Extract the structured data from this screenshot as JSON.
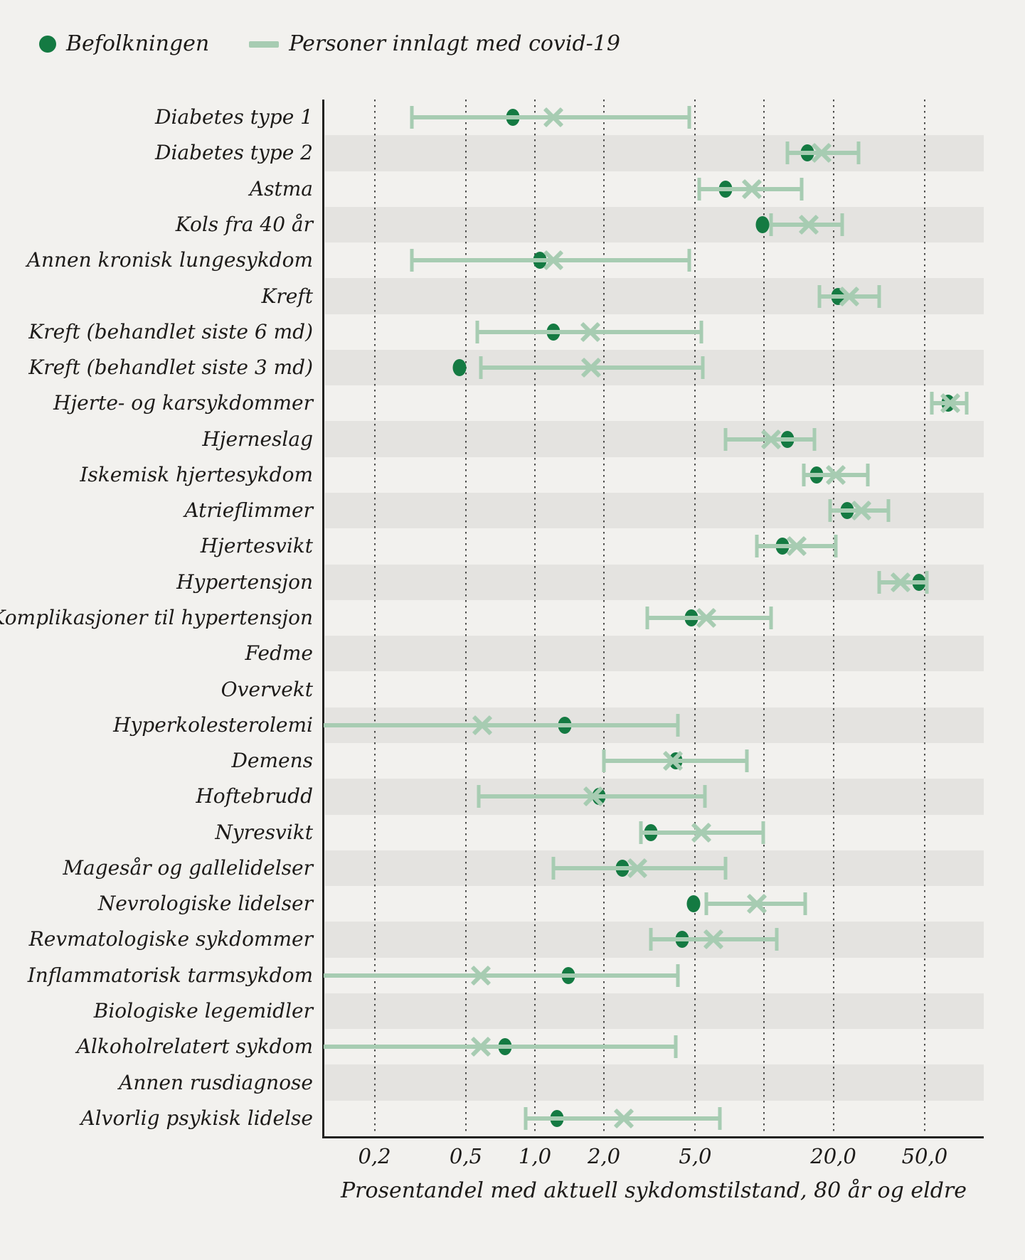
{
  "legend": {
    "population_label": "Befolkningen",
    "covid_label": "Personer innlagt med covid-19"
  },
  "axis": {
    "scale": "log",
    "min": 0.12,
    "max": 90.5,
    "gridlines": [
      0.2,
      0.5,
      1,
      2,
      5,
      10,
      20,
      50
    ],
    "ticks": [
      {
        "label": "0,2",
        "value": 0.2
      },
      {
        "label": "0,5",
        "value": 0.5
      },
      {
        "label": "1,0",
        "value": 1
      },
      {
        "label": "2,0",
        "value": 2
      },
      {
        "label": "5,0",
        "value": 5
      },
      {
        "label": "20,0",
        "value": 20
      },
      {
        "label": "50,0",
        "value": 50
      }
    ],
    "title": "Prosentandel med aktuell sykdomstilstand, 80 år og eldre"
  },
  "colors": {
    "population": "#147a42",
    "covid": "#a7ccb2",
    "band": "#e4e3e0",
    "background": "#f2f1ee",
    "axis_line": "#222220",
    "grid_dot": "#4b4b49",
    "text": "#1d1b19"
  },
  "chart_data": {
    "type": "scatter",
    "subtype": "forest-dot-interval",
    "legend_position": "top-left",
    "grid": "vertical-dotted",
    "series_names": [
      "Befolkningen",
      "Personer innlagt med covid-19"
    ],
    "rows": [
      {
        "label": "Diabetes type 1",
        "population": 0.8,
        "covid": 1.2,
        "ci_low": 0.29,
        "ci_high": 4.7,
        "ci_low_capped": true
      },
      {
        "label": "Diabetes type 2",
        "population": 15.4,
        "covid": 17.8,
        "ci_low": 12.6,
        "ci_high": 25.7,
        "ci_low_capped": true
      },
      {
        "label": "Astma",
        "population": 6.8,
        "covid": 8.8,
        "ci_low": 5.2,
        "ci_high": 14.5,
        "ci_low_capped": true
      },
      {
        "label": "Kols fra 40 år",
        "population": 9.8,
        "covid": 15.6,
        "ci_low": 10.7,
        "ci_high": 21.9,
        "ci_low_capped": true
      },
      {
        "label": "Annen kronisk lungesykdom",
        "population": 1.05,
        "covid": 1.2,
        "ci_low": 0.29,
        "ci_high": 4.7,
        "ci_low_capped": true
      },
      {
        "label": "Kreft",
        "population": 20.9,
        "covid": 23.5,
        "ci_low": 17.4,
        "ci_high": 31.7,
        "ci_low_capped": true
      },
      {
        "label": "Kreft (behandlet siste 6 md)",
        "population": 1.2,
        "covid": 1.75,
        "ci_low": 0.56,
        "ci_high": 5.3,
        "ci_low_capped": true
      },
      {
        "label": "Kreft (behandlet siste 3 md)",
        "population": 0.47,
        "covid": 1.76,
        "ci_low": 0.58,
        "ci_high": 5.4,
        "ci_low_capped": true
      },
      {
        "label": "Hjerte- og karsykdommer",
        "population": 63.5,
        "covid": 64.6,
        "ci_low": 53.7,
        "ci_high": 76.4,
        "ci_low_capped": true
      },
      {
        "label": "Hjerneslag",
        "population": 12.6,
        "covid": 10.7,
        "ci_low": 6.8,
        "ci_high": 16.5,
        "ci_low_capped": true
      },
      {
        "label": "Iskemisk hjertesykdom",
        "population": 16.9,
        "covid": 20.5,
        "ci_low": 14.9,
        "ci_high": 28.3,
        "ci_low_capped": true
      },
      {
        "label": "Atrieflimmer",
        "population": 22.9,
        "covid": 26.5,
        "ci_low": 19.3,
        "ci_high": 34.7,
        "ci_low_capped": true
      },
      {
        "label": "Hjertesvikt",
        "population": 12.0,
        "covid": 13.8,
        "ci_low": 9.3,
        "ci_high": 20.5,
        "ci_low_capped": true
      },
      {
        "label": "Hypertensjon",
        "population": 47.2,
        "covid": 39.2,
        "ci_low": 31.7,
        "ci_high": 51.0,
        "ci_low_capped": true
      },
      {
        "label": "Komplikasjoner til hypertensjon",
        "population": 4.8,
        "covid": 5.6,
        "ci_low": 3.1,
        "ci_high": 10.7,
        "ci_low_capped": true
      },
      {
        "label": "Fedme",
        "population": null,
        "covid": null,
        "ci_low": null,
        "ci_high": null,
        "ci_low_capped": true
      },
      {
        "label": "Overvekt",
        "population": null,
        "covid": null,
        "ci_low": null,
        "ci_high": null,
        "ci_low_capped": true
      },
      {
        "label": "Hyperkolesterolemi",
        "population": 1.35,
        "covid": 0.59,
        "ci_low": 0.12,
        "ci_high": 4.2,
        "ci_low_capped": false
      },
      {
        "label": "Demens",
        "population": 4.1,
        "covid": 4.0,
        "ci_low": 2.0,
        "ci_high": 8.4,
        "ci_low_capped": true
      },
      {
        "label": "Hoftebrudd",
        "population": 1.9,
        "covid": 1.8,
        "ci_low": 0.57,
        "ci_high": 5.5,
        "ci_low_capped": true
      },
      {
        "label": "Nyresvikt",
        "population": 3.2,
        "covid": 5.3,
        "ci_low": 2.9,
        "ci_high": 9.9,
        "ci_low_capped": true
      },
      {
        "label": "Magesår og gallelidelser",
        "population": 2.4,
        "covid": 2.8,
        "ci_low": 1.2,
        "ci_high": 6.8,
        "ci_low_capped": true
      },
      {
        "label": "Nevrologiske lidelser",
        "population": 4.9,
        "covid": 9.3,
        "ci_low": 5.6,
        "ci_high": 15.1,
        "ci_low_capped": true
      },
      {
        "label": "Revmatologiske sykdommer",
        "population": 4.4,
        "covid": 6.0,
        "ci_low": 3.2,
        "ci_high": 11.3,
        "ci_low_capped": true
      },
      {
        "label": "Inflammatorisk tarmsykdom",
        "population": 1.4,
        "covid": 0.58,
        "ci_low": 0.12,
        "ci_high": 4.2,
        "ci_low_capped": false
      },
      {
        "label": "Biologiske legemidler",
        "population": null,
        "covid": null,
        "ci_low": null,
        "ci_high": null,
        "ci_low_capped": true
      },
      {
        "label": "Alkoholrelatert sykdom",
        "population": 0.74,
        "covid": 0.58,
        "ci_low": 0.12,
        "ci_high": 4.1,
        "ci_low_capped": false
      },
      {
        "label": "Annen rusdiagnose",
        "population": null,
        "covid": null,
        "ci_low": null,
        "ci_high": null,
        "ci_low_capped": true
      },
      {
        "label": "Alvorlig psykisk lidelse",
        "population": 1.25,
        "covid": 2.45,
        "ci_low": 0.91,
        "ci_high": 6.4,
        "ci_low_capped": true
      }
    ]
  }
}
